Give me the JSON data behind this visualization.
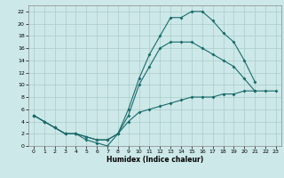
{
  "xlabel": "Humidex (Indice chaleur)",
  "bg_color": "#cde8e8",
  "grid_color": "#aacccc",
  "line_color": "#1a6b6b",
  "xlim": [
    -0.5,
    23.5
  ],
  "ylim": [
    0,
    23
  ],
  "xticks": [
    0,
    1,
    2,
    3,
    4,
    5,
    6,
    7,
    8,
    9,
    10,
    11,
    12,
    13,
    14,
    15,
    16,
    17,
    18,
    19,
    20,
    21,
    22,
    23
  ],
  "yticks": [
    0,
    2,
    4,
    6,
    8,
    10,
    12,
    14,
    16,
    18,
    20,
    22
  ],
  "line1_x": [
    0,
    1,
    2,
    3,
    4,
    5,
    6,
    7,
    8,
    9,
    10,
    11,
    12,
    13,
    14,
    15,
    16,
    17,
    18,
    19,
    20,
    21
  ],
  "line1_y": [
    5,
    4,
    3,
    2,
    2,
    1,
    0.5,
    0,
    2,
    6,
    11,
    15,
    18,
    21,
    21,
    22,
    22,
    20.5,
    18.5,
    17,
    14,
    10.5
  ],
  "line2_x": [
    0,
    1,
    2,
    3,
    4,
    5,
    6,
    7,
    8,
    9,
    10,
    11,
    12,
    13,
    14,
    15,
    16,
    17,
    18,
    19,
    20,
    21
  ],
  "line2_y": [
    5,
    4,
    3,
    2,
    2,
    1.5,
    1,
    1,
    2,
    5,
    10,
    13,
    16,
    17,
    17,
    17,
    16,
    15,
    14,
    13,
    11,
    9
  ],
  "line3_x": [
    0,
    1,
    2,
    3,
    4,
    5,
    6,
    7,
    8,
    9,
    10,
    11,
    12,
    13,
    14,
    15,
    16,
    17,
    18,
    19,
    20,
    21,
    22,
    23
  ],
  "line3_y": [
    5,
    4,
    3,
    2,
    2,
    1.5,
    1,
    1,
    2,
    4,
    5.5,
    6,
    6.5,
    7,
    7.5,
    8,
    8,
    8,
    8.5,
    8.5,
    9,
    9,
    9,
    9
  ]
}
